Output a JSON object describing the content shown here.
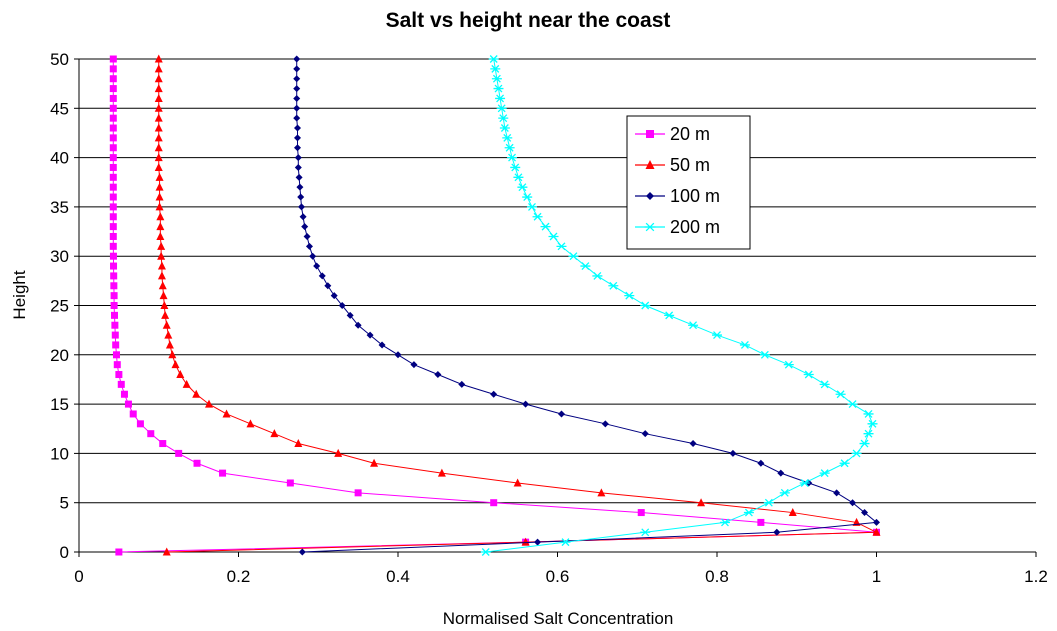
{
  "chart_data": {
    "type": "line",
    "title": "Salt vs height near the coast",
    "xlabel": "Normalised Salt Concentration",
    "ylabel": "Height",
    "xlim": [
      0,
      1.2
    ],
    "ylim": [
      0,
      50
    ],
    "xticks": [
      "0",
      "0.2",
      "0.4",
      "0.6",
      "0.8",
      "1",
      "1.2"
    ],
    "yticks": [
      "0",
      "5",
      "10",
      "15",
      "20",
      "25",
      "30",
      "35",
      "40",
      "45",
      "50"
    ],
    "grid": "horizontal",
    "legend_position": "top-right",
    "series": [
      {
        "name": "20 m",
        "color": "#ff00ff",
        "marker": "square",
        "y": [
          0,
          1,
          2,
          3,
          4,
          5,
          6,
          7,
          8,
          9,
          10,
          11,
          12,
          13,
          14,
          15,
          16,
          17,
          18,
          19,
          20,
          21,
          22,
          23,
          24,
          25,
          26,
          27,
          28,
          29,
          30,
          31,
          32,
          33,
          34,
          35,
          36,
          37,
          38,
          39,
          40,
          41,
          42,
          43,
          44,
          45,
          46,
          47,
          48,
          49,
          50
        ],
        "x": [
          0.05,
          0.56,
          1.0,
          0.855,
          0.705,
          0.52,
          0.35,
          0.265,
          0.18,
          0.148,
          0.125,
          0.105,
          0.09,
          0.077,
          0.068,
          0.062,
          0.057,
          0.053,
          0.05,
          0.048,
          0.047,
          0.046,
          0.0455,
          0.045,
          0.0445,
          0.044,
          0.044,
          0.0437,
          0.0435,
          0.0433,
          0.0432,
          0.043,
          0.043,
          0.043,
          0.043,
          0.043,
          0.043,
          0.043,
          0.043,
          0.043,
          0.043,
          0.043,
          0.043,
          0.043,
          0.043,
          0.043,
          0.043,
          0.043,
          0.043,
          0.043,
          0.043
        ]
      },
      {
        "name": "50 m",
        "color": "#ff0000",
        "marker": "triangle",
        "y": [
          0,
          1,
          2,
          3,
          4,
          5,
          6,
          7,
          8,
          9,
          10,
          11,
          12,
          13,
          14,
          15,
          16,
          17,
          18,
          19,
          20,
          21,
          22,
          23,
          24,
          25,
          26,
          27,
          28,
          29,
          30,
          31,
          32,
          33,
          34,
          35,
          36,
          37,
          38,
          39,
          40,
          41,
          42,
          43,
          44,
          45,
          46,
          47,
          48,
          49,
          50
        ],
        "x": [
          0.11,
          0.56,
          1.0,
          0.975,
          0.895,
          0.78,
          0.655,
          0.55,
          0.455,
          0.37,
          0.325,
          0.275,
          0.245,
          0.215,
          0.185,
          0.163,
          0.147,
          0.135,
          0.127,
          0.121,
          0.117,
          0.114,
          0.112,
          0.11,
          0.108,
          0.107,
          0.106,
          0.105,
          0.104,
          0.104,
          0.103,
          0.103,
          0.102,
          0.102,
          0.102,
          0.101,
          0.101,
          0.101,
          0.101,
          0.1,
          0.1,
          0.1,
          0.1,
          0.1,
          0.1,
          0.1,
          0.1,
          0.1,
          0.1,
          0.1,
          0.1
        ]
      },
      {
        "name": "100 m",
        "color": "#000080",
        "marker": "diamond",
        "y": [
          0,
          1,
          2,
          3,
          4,
          5,
          6,
          7,
          8,
          9,
          10,
          11,
          12,
          13,
          14,
          15,
          16,
          17,
          18,
          19,
          20,
          21,
          22,
          23,
          24,
          25,
          26,
          27,
          28,
          29,
          30,
          31,
          32,
          33,
          34,
          35,
          36,
          37,
          38,
          39,
          40,
          41,
          42,
          43,
          44,
          45,
          46,
          47,
          48,
          49,
          50
        ],
        "x": [
          0.28,
          0.575,
          0.875,
          1.0,
          0.985,
          0.97,
          0.95,
          0.915,
          0.88,
          0.855,
          0.82,
          0.77,
          0.71,
          0.66,
          0.605,
          0.56,
          0.52,
          0.48,
          0.45,
          0.42,
          0.4,
          0.38,
          0.365,
          0.35,
          0.34,
          0.33,
          0.32,
          0.312,
          0.305,
          0.298,
          0.293,
          0.289,
          0.286,
          0.283,
          0.281,
          0.279,
          0.278,
          0.277,
          0.276,
          0.275,
          0.275,
          0.274,
          0.274,
          0.274,
          0.273,
          0.273,
          0.273,
          0.273,
          0.273,
          0.273,
          0.273
        ]
      },
      {
        "name": "200 m",
        "color": "#00ffff",
        "marker": "star",
        "y": [
          0,
          1,
          2,
          3,
          4,
          5,
          6,
          7,
          8,
          9,
          10,
          11,
          12,
          13,
          14,
          15,
          16,
          17,
          18,
          19,
          20,
          21,
          22,
          23,
          24,
          25,
          26,
          27,
          28,
          29,
          30,
          31,
          32,
          33,
          34,
          35,
          36,
          37,
          38,
          39,
          40,
          41,
          42,
          43,
          44,
          45,
          46,
          47,
          48,
          49,
          50
        ],
        "x": [
          0.51,
          0.61,
          0.71,
          0.81,
          0.84,
          0.865,
          0.885,
          0.91,
          0.935,
          0.96,
          0.975,
          0.985,
          0.99,
          0.995,
          0.99,
          0.97,
          0.955,
          0.935,
          0.915,
          0.89,
          0.86,
          0.835,
          0.8,
          0.77,
          0.74,
          0.71,
          0.69,
          0.67,
          0.65,
          0.635,
          0.62,
          0.605,
          0.595,
          0.585,
          0.575,
          0.568,
          0.562,
          0.556,
          0.551,
          0.547,
          0.543,
          0.54,
          0.537,
          0.534,
          0.532,
          0.53,
          0.528,
          0.526,
          0.524,
          0.522,
          0.52
        ]
      }
    ]
  }
}
